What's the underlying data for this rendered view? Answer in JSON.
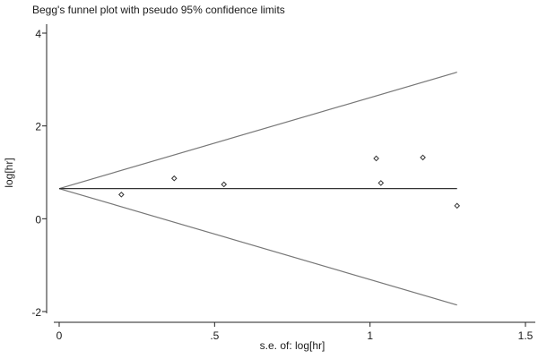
{
  "chart_data": {
    "type": "scatter",
    "title": "Begg's funnel plot with pseudo 95% confidence limits",
    "xlabel": "s.e. of: log[hr]",
    "ylabel": "log[hr]",
    "xlim": [
      0,
      1.5
    ],
    "ylim": [
      -2,
      4
    ],
    "x_ticks": [
      0,
      0.5,
      1,
      1.5
    ],
    "x_tick_labels": [
      "0",
      ".5",
      "1",
      "1.5"
    ],
    "y_ticks": [
      -2,
      0,
      2,
      4
    ],
    "y_tick_labels": [
      "-2",
      "0",
      "2",
      "4"
    ],
    "pooled_estimate": 0.65,
    "line_x_max": 1.28,
    "points": [
      {
        "x": 0.2,
        "y": 0.52
      },
      {
        "x": 0.37,
        "y": 0.87
      },
      {
        "x": 0.53,
        "y": 0.74
      },
      {
        "x": 1.02,
        "y": 1.3
      },
      {
        "x": 1.035,
        "y": 0.77
      },
      {
        "x": 1.17,
        "y": 1.32
      },
      {
        "x": 1.28,
        "y": 0.28
      }
    ],
    "grid": false,
    "colors": {
      "marker": "#333333",
      "lines": "#777777",
      "axis": "#222222"
    }
  }
}
